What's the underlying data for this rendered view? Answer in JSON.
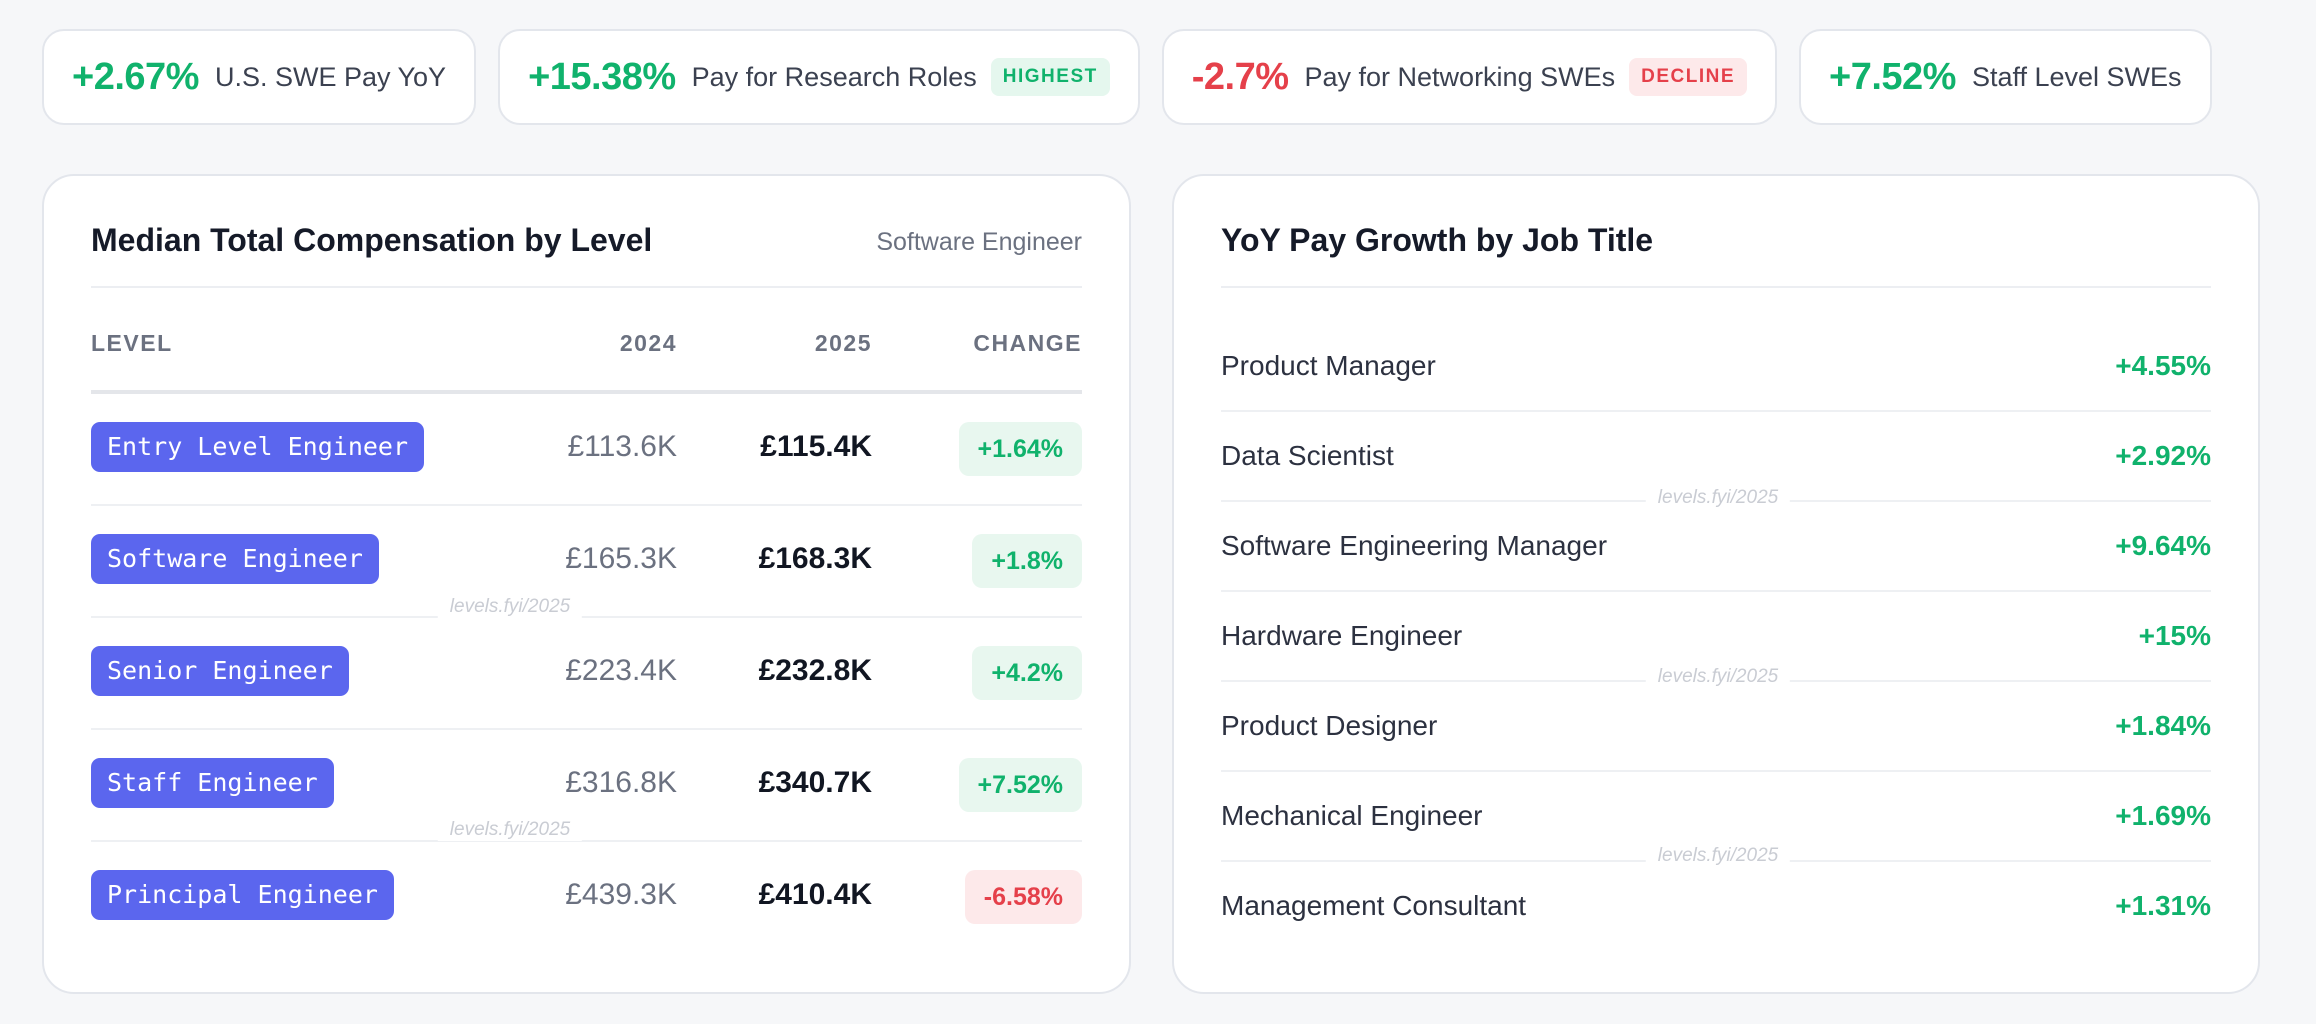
{
  "stats": [
    {
      "value": "+2.67%",
      "label": "U.S. SWE Pay YoY",
      "tone": "green",
      "badge": ""
    },
    {
      "value": "+15.38%",
      "label": "Pay for Research Roles",
      "tone": "green",
      "badge": "HIGHEST"
    },
    {
      "value": "-2.7%",
      "label": "Pay for Networking SWEs",
      "tone": "red",
      "badge": "DECLINE"
    },
    {
      "value": "+7.52%",
      "label": "Staff Level SWEs",
      "tone": "green",
      "badge": ""
    }
  ],
  "comp_card": {
    "title": "Median Total Compensation by Level",
    "subtitle": "Software Engineer",
    "columns": {
      "level": "LEVEL",
      "y2024": "2024",
      "y2025": "2025",
      "change": "CHANGE"
    },
    "rows": [
      {
        "level": "Entry Level Engineer",
        "v2024": "£113.6K",
        "v2025": "£115.4K",
        "change": "+1.64%",
        "tone": "green"
      },
      {
        "level": "Software Engineer",
        "v2024": "£165.3K",
        "v2025": "£168.3K",
        "change": "+1.8%",
        "tone": "green"
      },
      {
        "level": "Senior Engineer",
        "v2024": "£223.4K",
        "v2025": "£232.8K",
        "change": "+4.2%",
        "tone": "green"
      },
      {
        "level": "Staff Engineer",
        "v2024": "£316.8K",
        "v2025": "£340.7K",
        "change": "+7.52%",
        "tone": "green"
      },
      {
        "level": "Principal Engineer",
        "v2024": "£439.3K",
        "v2025": "£410.4K",
        "change": "-6.58%",
        "tone": "red"
      }
    ]
  },
  "growth_card": {
    "title": "YoY Pay Growth by Job Title",
    "rows": [
      {
        "title": "Product Manager",
        "value": "+4.55%",
        "tone": "green"
      },
      {
        "title": "Data Scientist",
        "value": "+2.92%",
        "tone": "green"
      },
      {
        "title": "Software Engineering Manager",
        "value": "+9.64%",
        "tone": "green"
      },
      {
        "title": "Hardware Engineer",
        "value": "+15%",
        "tone": "green"
      },
      {
        "title": "Product Designer",
        "value": "+1.84%",
        "tone": "green"
      },
      {
        "title": "Mechanical Engineer",
        "value": "+1.69%",
        "tone": "green"
      },
      {
        "title": "Management Consultant",
        "value": "+1.31%",
        "tone": "green"
      }
    ]
  },
  "watermark": "levels.fyi/2025",
  "colors": {
    "positive": "#10b26c",
    "negative": "#e5404a",
    "level_tag": "#5b66ee"
  }
}
